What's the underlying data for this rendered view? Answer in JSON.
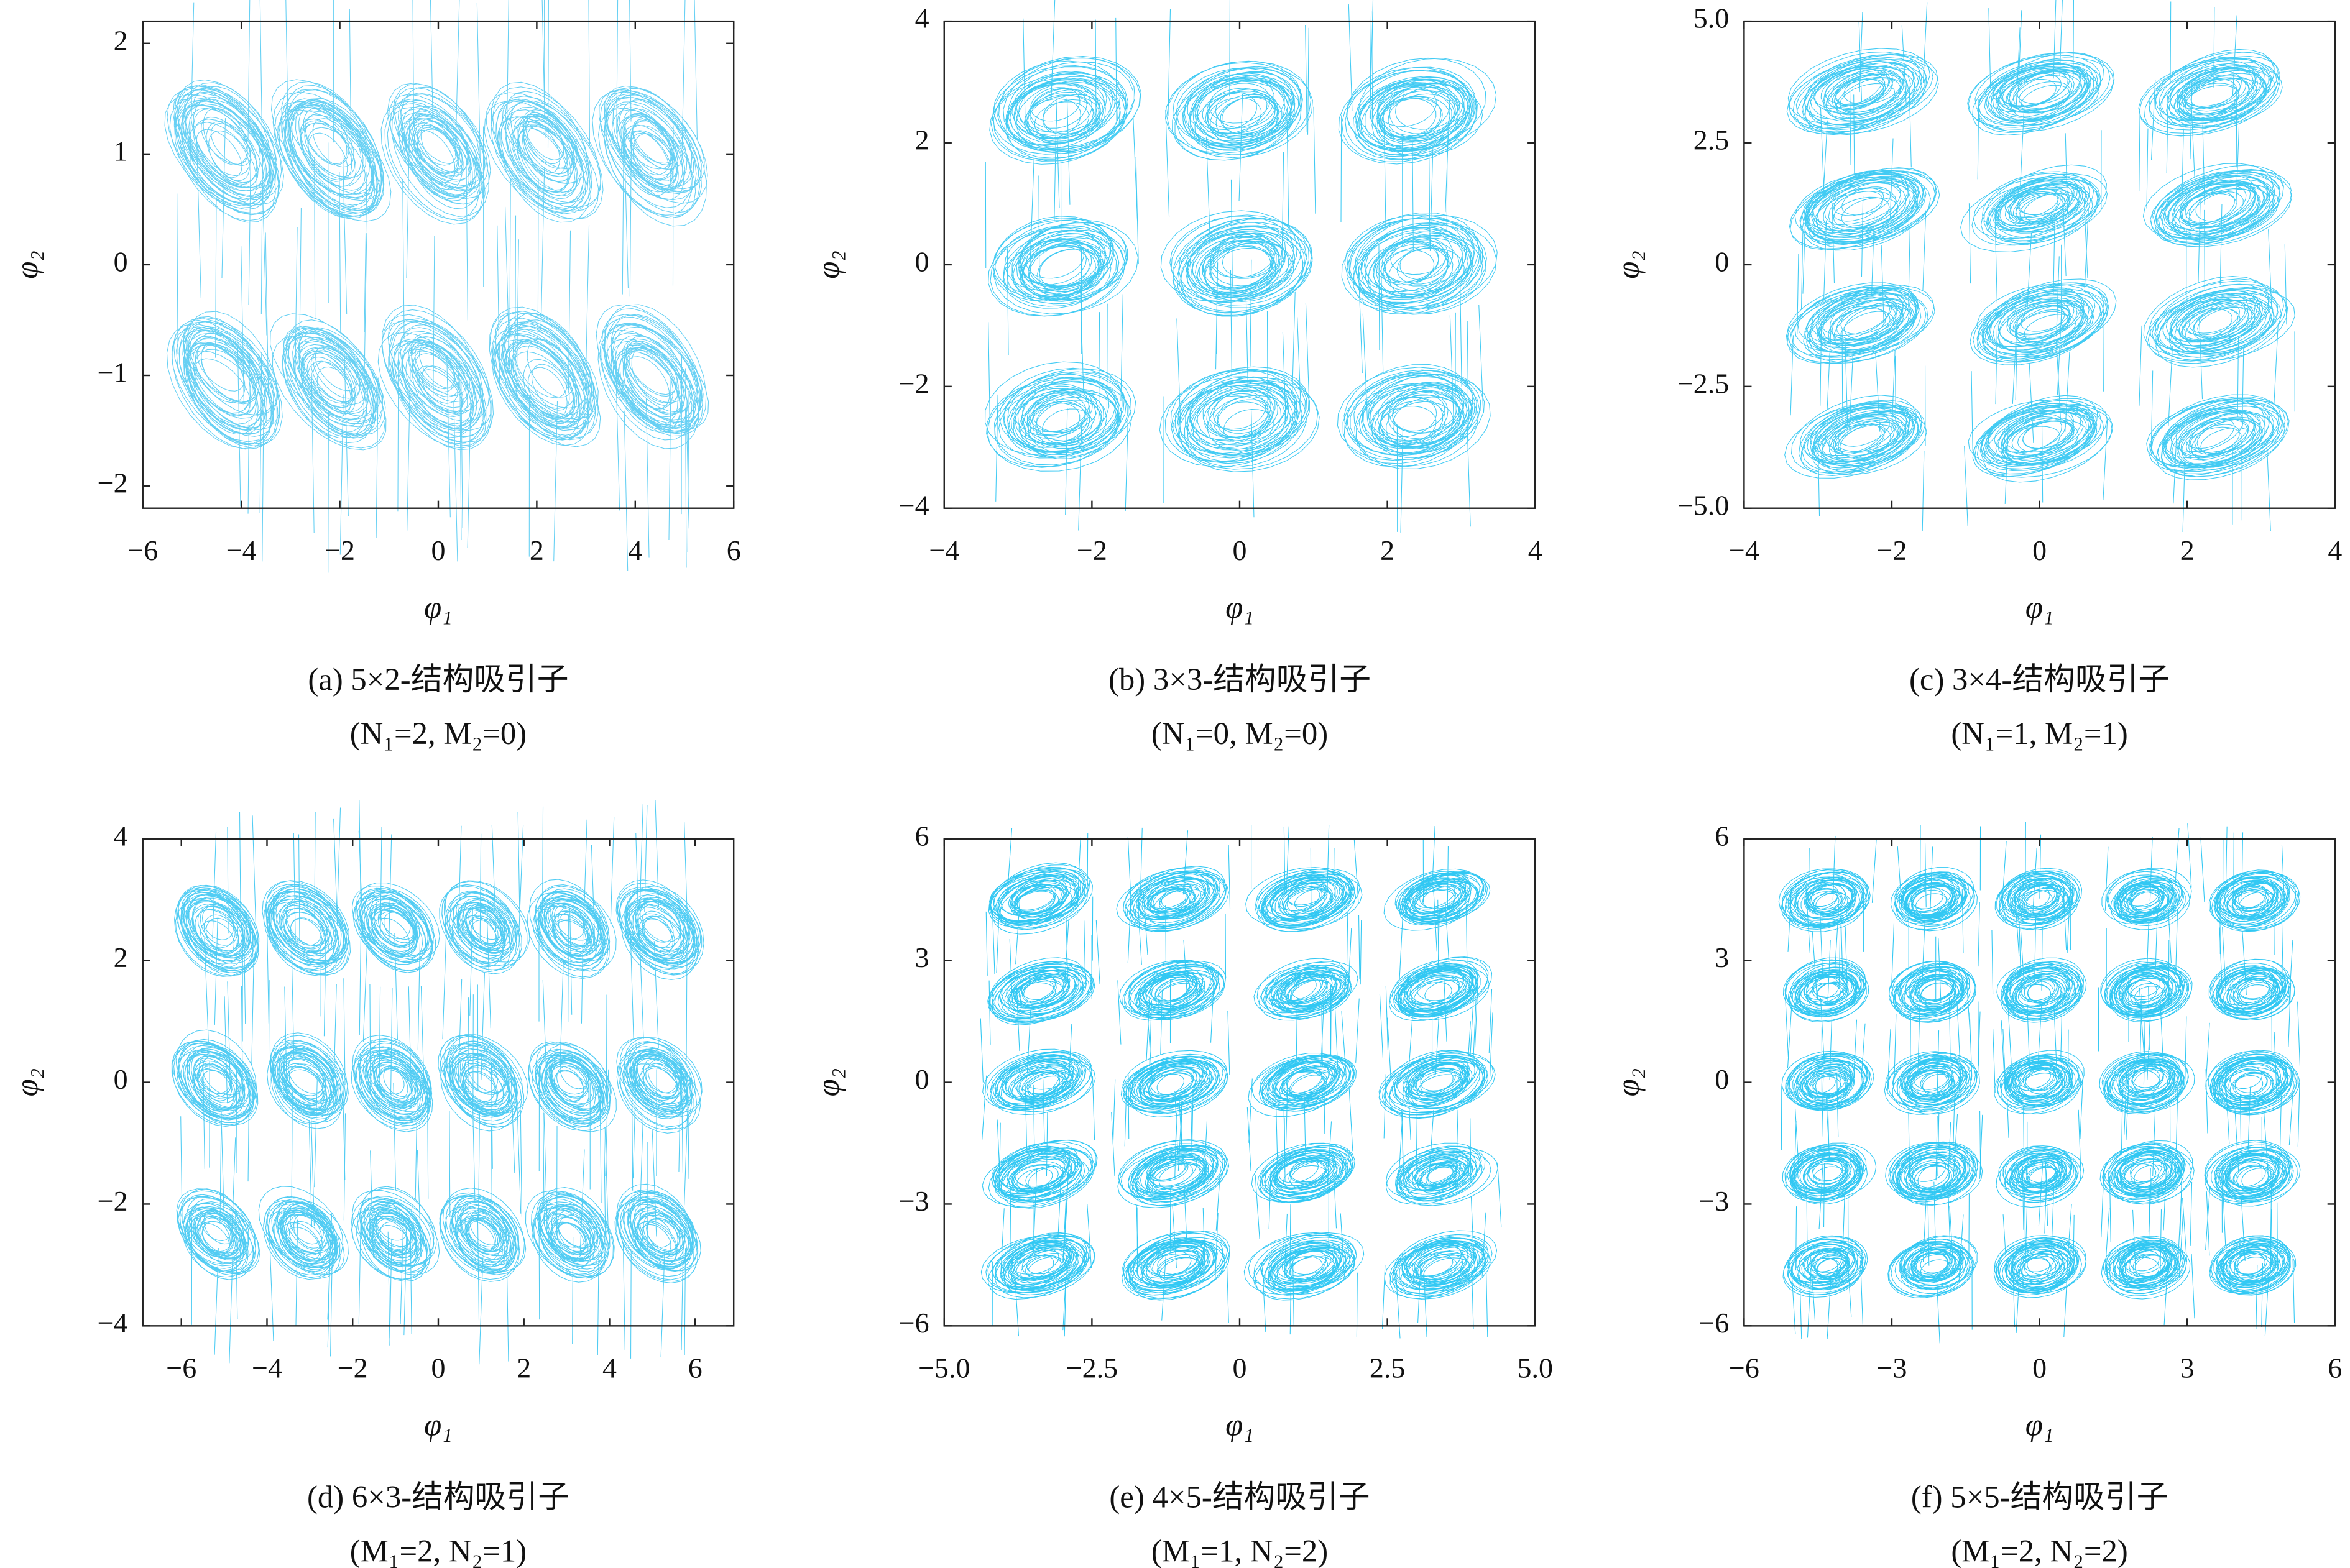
{
  "chart_data": [
    {
      "type": "attractor",
      "caption": "(a) 5×2-结构吸引子",
      "subcaption": "(N₁=2, M₂=0)",
      "xlabel": "φ₁",
      "ylabel": "φ₂",
      "xlim": [
        -6,
        6
      ],
      "xticks": [
        {
          "value": -6,
          "label": "−6"
        },
        {
          "value": -4,
          "label": "−4"
        },
        {
          "value": -2,
          "label": "−2"
        },
        0,
        2,
        4,
        6
      ],
      "ylim": [
        -2.2,
        2.2
      ],
      "yticks": [
        {
          "value": -2,
          "label": "−2"
        },
        {
          "value": -1,
          "label": "−1"
        },
        0,
        1,
        2
      ],
      "color": "#4cc8f2"
    },
    {
      "type": "attractor",
      "caption": "(b) 3×3-结构吸引子",
      "subcaption": "(N₁=0, M₂=0)",
      "xlabel": "φ₁",
      "ylabel": "φ₂",
      "xlim": [
        -4,
        4
      ],
      "xticks": [
        {
          "value": -4,
          "label": "−4"
        },
        {
          "value": -2,
          "label": "−2"
        },
        0,
        2,
        4
      ],
      "ylim": [
        -4,
        4
      ],
      "yticks": [
        {
          "value": -4,
          "label": "−4"
        },
        {
          "value": -2,
          "label": "−2"
        },
        0,
        2,
        4
      ],
      "color": "#22c2f2"
    },
    {
      "type": "attractor",
      "caption": "(c) 3×4-结构吸引子",
      "subcaption": "(N₁=1, M₂=1)",
      "xlabel": "φ₁",
      "ylabel": "φ₂",
      "xlim": [
        -4,
        4
      ],
      "xticks": [
        {
          "value": -4,
          "label": "−4"
        },
        {
          "value": -2,
          "label": "−2"
        },
        0,
        2,
        4
      ],
      "ylim": [
        -5,
        5
      ],
      "yticks": [
        {
          "value": -5,
          "label": "−5.0"
        },
        {
          "value": -2.5,
          "label": "−2.5"
        },
        0,
        2.5,
        {
          "value": 5,
          "label": "5.0"
        }
      ],
      "color": "#22c2f2"
    },
    {
      "type": "attractor",
      "caption": "(d) 6×3-结构吸引子",
      "subcaption": "(M₁=2, N₂=1)",
      "xlabel": "φ₁",
      "ylabel": "φ₂",
      "xlim": [
        -6.9,
        6.9
      ],
      "xticks": [
        {
          "value": -6,
          "label": "−6"
        },
        {
          "value": -4,
          "label": "−4"
        },
        {
          "value": -2,
          "label": "−2"
        },
        0,
        2,
        4,
        6
      ],
      "ylim": [
        -4,
        4
      ],
      "yticks": [
        {
          "value": -4,
          "label": "−4"
        },
        {
          "value": -2,
          "label": "−2"
        },
        0,
        2,
        4
      ],
      "color": "#33c4f2"
    },
    {
      "type": "attractor",
      "caption": "(e) 4×5-结构吸引子",
      "subcaption": "(M₁=1, N₂=2)",
      "xlabel": "φ₁",
      "ylabel": "φ₂",
      "xlim": [
        -5,
        5
      ],
      "xticks": [
        {
          "value": -5,
          "label": "−5.0"
        },
        {
          "value": -2.5,
          "label": "−2.5"
        },
        0,
        2.5,
        {
          "value": 5,
          "label": "5.0"
        }
      ],
      "ylim": [
        -6,
        6
      ],
      "yticks": [
        {
          "value": -6,
          "label": "−6"
        },
        {
          "value": -3,
          "label": "−3"
        },
        0,
        3,
        6
      ],
      "color": "#0fbff2"
    },
    {
      "type": "attractor",
      "caption": "(f) 5×5-结构吸引子",
      "subcaption": "(M₁=2, N₂=2)",
      "xlabel": "φ₁",
      "ylabel": "φ₂",
      "xlim": [
        -6,
        6
      ],
      "xticks": [
        {
          "value": -6,
          "label": "−6"
        },
        {
          "value": -3,
          "label": "−3"
        },
        0,
        3,
        6
      ],
      "ylim": [
        -6,
        6
      ],
      "yticks": [
        {
          "value": -6,
          "label": "−6"
        },
        {
          "value": -3,
          "label": "−3"
        },
        0,
        3,
        6
      ],
      "color": "#0fbff2"
    }
  ]
}
